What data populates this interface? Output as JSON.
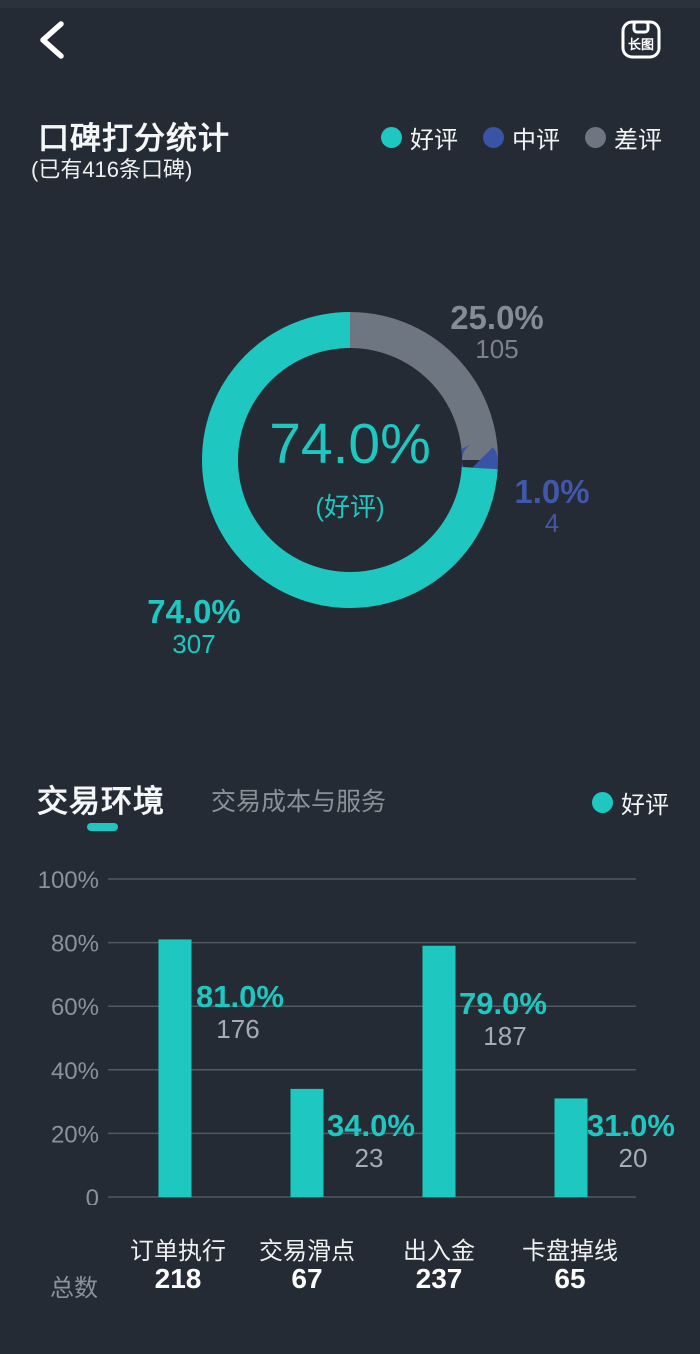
{
  "topbar": {
    "back_icon": "chevron-left",
    "longimage_button_label": "长图"
  },
  "score_section": {
    "title": "口碑打分统计",
    "subtitle": "(已有416条口碑)",
    "legend": [
      {
        "label": "好评",
        "color": "#1ec8c0"
      },
      {
        "label": "中评",
        "color": "#3a54a5"
      },
      {
        "label": "差评",
        "color": "#6e7681"
      }
    ]
  },
  "colors": {
    "background": "#252b34",
    "accent_teal": "#1ec8c0",
    "accent_blue": "#3a54a5",
    "accent_gray": "#6e7681",
    "grid_line": "#525962",
    "axis_text": "#8b929c"
  },
  "chart_data": [
    {
      "type": "pie",
      "style": "donut",
      "title": "口碑打分统计",
      "total_reviews": 416,
      "center_value": "74.0%",
      "center_label": "(好评)",
      "start": "top",
      "direction": "clockwise",
      "order_from_top": [
        "差评",
        "中评",
        "好评"
      ],
      "segments": [
        {
          "name": "好评",
          "percent": 74.0,
          "percent_label": "74.0%",
          "count": 307,
          "color": "#1ec8c0"
        },
        {
          "name": "中评",
          "percent": 1.0,
          "percent_label": "1.0%",
          "count": 4,
          "color": "#3a54a5"
        },
        {
          "name": "差评",
          "percent": 25.0,
          "percent_label": "25.0%",
          "count": 105,
          "color": "#6e7681"
        }
      ]
    },
    {
      "type": "bar",
      "title": "交易环境",
      "subtitle": "交易成本与服务",
      "legend": [
        {
          "label": "好评",
          "color": "#1ec8c0"
        }
      ],
      "categories": [
        "订单执行",
        "交易滑点",
        "出入金",
        "卡盘掉线"
      ],
      "values": [
        81,
        34,
        79,
        31
      ],
      "value_labels": [
        "81.0%",
        "34.0%",
        "79.0%",
        "31.0%"
      ],
      "counts": [
        176,
        23,
        187,
        20
      ],
      "totals": [
        218,
        67,
        237,
        65
      ],
      "totals_row_label": "总数",
      "ylim": [
        0,
        100
      ],
      "y_ticks": [
        "100%",
        "80%",
        "60%",
        "40%",
        "20%",
        "0"
      ],
      "grid": true,
      "bar_color": "#1ec8c0"
    }
  ]
}
